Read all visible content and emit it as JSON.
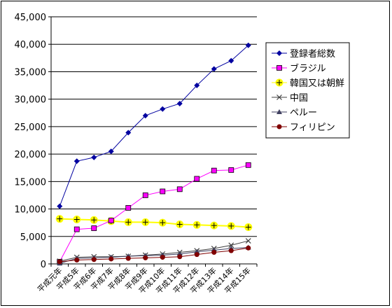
{
  "chart_data": {
    "type": "line",
    "categories": [
      "平成元年",
      "平成5年",
      "平成6年",
      "平成7年",
      "平成8年",
      "平成9年",
      "平成10年",
      "平成11年",
      "平成12年",
      "平成13年",
      "平成14年",
      "平成15年"
    ],
    "y_ticks": [
      "0",
      "5,000",
      "10,000",
      "15,000",
      "20,000",
      "25,000",
      "30,000",
      "35,000",
      "40,000",
      "45,000"
    ],
    "ylim": [
      0,
      45000
    ],
    "grid": true,
    "legend_position": "right",
    "series": [
      {
        "name": "登録者総数",
        "color": "#0000a0",
        "marker": "diamond",
        "values": [
          10500,
          18700,
          19400,
          20500,
          23900,
          27000,
          28200,
          29200,
          32500,
          35500,
          37000,
          39800
        ]
      },
      {
        "name": "ブラジル",
        "color": "#ff00ff",
        "marker": "square",
        "values": [
          400,
          6300,
          6500,
          7900,
          10200,
          12500,
          13200,
          13600,
          15500,
          17000,
          17100,
          18000
        ]
      },
      {
        "name": "韓国又は朝鮮",
        "color": "#ffff00",
        "marker": "star",
        "values": [
          8200,
          8100,
          8000,
          7800,
          7600,
          7600,
          7500,
          7200,
          7100,
          7000,
          6900,
          6700
        ]
      },
      {
        "name": "中国",
        "color": "#404040",
        "marker": "x",
        "values": [
          500,
          1200,
          1300,
          1300,
          1400,
          1600,
          1800,
          2100,
          2400,
          2800,
          3400,
          4200
        ]
      },
      {
        "name": "ペルー",
        "color": "#404060",
        "marker": "triangle",
        "values": [
          100,
          1000,
          1100,
          1200,
          1400,
          1500,
          1600,
          1800,
          2200,
          2500,
          2800,
          3000
        ]
      },
      {
        "name": "フィリピン",
        "color": "#800000",
        "marker": "circle",
        "values": [
          400,
          700,
          800,
          900,
          1000,
          1100,
          1200,
          1300,
          1700,
          2100,
          2400,
          2900
        ]
      }
    ]
  }
}
